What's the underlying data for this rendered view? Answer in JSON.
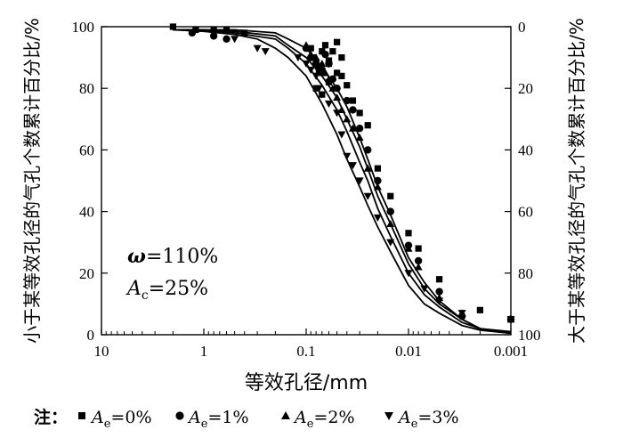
{
  "chart_data": {
    "type": "scatter",
    "xlabel": "等效孔径/mm",
    "ylabel": "小于某等效孔径的气孔个数累计百分比/%",
    "y2label": "大于某等效孔径的气孔个数累计百分比/%",
    "x_scale": "log",
    "x_reversed": true,
    "xlim": [
      10,
      0.001
    ],
    "ylim": [
      0,
      100
    ],
    "y2lim": [
      100,
      0
    ],
    "x_ticks": [
      "10",
      "1",
      "0.1",
      "0.01",
      "0.001"
    ],
    "y_ticks": [
      "0",
      "20",
      "40",
      "60",
      "80",
      "100"
    ],
    "y2_ticks": [
      "100",
      "80",
      "60",
      "40",
      "20",
      "0"
    ],
    "grid": false,
    "annotation": {
      "omega": {
        "symbol": "ω",
        "text": "=110%"
      },
      "Ac": {
        "symbol": "A",
        "sub": "c",
        "text": "=25%"
      }
    },
    "legend": {
      "prefix": "注：",
      "symbol": "A",
      "sub": "e",
      "placement": "bottom"
    },
    "series": [
      {
        "name": "=0%",
        "marker": "square",
        "points": [
          [
            2,
            100
          ],
          [
            1.2,
            99
          ],
          [
            0.8,
            99
          ],
          [
            0.6,
            99
          ],
          [
            0.4,
            98
          ],
          [
            0.09,
            93
          ],
          [
            0.085,
            90
          ],
          [
            0.08,
            88
          ],
          [
            0.075,
            86
          ],
          [
            0.07,
            92
          ],
          [
            0.065,
            94
          ],
          [
            0.06,
            89
          ],
          [
            0.055,
            92
          ],
          [
            0.05,
            95
          ],
          [
            0.045,
            90
          ],
          [
            0.05,
            85
          ],
          [
            0.06,
            82
          ],
          [
            0.07,
            85
          ],
          [
            0.08,
            80
          ],
          [
            0.07,
            78
          ],
          [
            0.06,
            88
          ],
          [
            0.045,
            84
          ],
          [
            0.04,
            81
          ],
          [
            0.035,
            76
          ],
          [
            0.03,
            72
          ],
          [
            0.025,
            68
          ],
          [
            0.02,
            54
          ],
          [
            0.015,
            45
          ],
          [
            0.01,
            33
          ],
          [
            0.008,
            28
          ],
          [
            0.005,
            18
          ],
          [
            0.002,
            8
          ],
          [
            0.001,
            5
          ]
        ],
        "fit": [
          [
            2,
            99
          ],
          [
            1,
            99
          ],
          [
            0.5,
            99
          ],
          [
            0.2,
            98
          ],
          [
            0.15,
            96
          ],
          [
            0.1,
            93
          ],
          [
            0.07,
            87
          ],
          [
            0.05,
            80
          ],
          [
            0.04,
            74
          ],
          [
            0.03,
            64
          ],
          [
            0.025,
            57
          ],
          [
            0.02,
            48
          ],
          [
            0.015,
            39
          ],
          [
            0.01,
            25
          ],
          [
            0.007,
            17
          ],
          [
            0.005,
            11
          ],
          [
            0.003,
            5
          ],
          [
            0.002,
            2
          ],
          [
            0.001,
            1
          ]
        ]
      },
      {
        "name": "=1%",
        "marker": "circle",
        "points": [
          [
            1.3,
            98
          ],
          [
            0.8,
            97
          ],
          [
            0.6,
            96
          ],
          [
            0.1,
            93
          ],
          [
            0.09,
            90
          ],
          [
            0.08,
            88
          ],
          [
            0.07,
            86
          ],
          [
            0.065,
            91
          ],
          [
            0.06,
            88
          ],
          [
            0.055,
            83
          ],
          [
            0.05,
            80
          ],
          [
            0.04,
            76
          ],
          [
            0.035,
            73
          ],
          [
            0.03,
            67
          ],
          [
            0.025,
            60
          ],
          [
            0.02,
            50
          ],
          [
            0.015,
            40
          ],
          [
            0.01,
            29
          ],
          [
            0.008,
            24
          ],
          [
            0.005,
            14
          ],
          [
            0.003,
            6
          ],
          [
            0.001,
            5
          ]
        ],
        "fit": [
          [
            2,
            99
          ],
          [
            1,
            99
          ],
          [
            0.5,
            98.5
          ],
          [
            0.2,
            97
          ],
          [
            0.15,
            94
          ],
          [
            0.1,
            90
          ],
          [
            0.07,
            84
          ],
          [
            0.05,
            77
          ],
          [
            0.04,
            70
          ],
          [
            0.03,
            61
          ],
          [
            0.025,
            54
          ],
          [
            0.02,
            45
          ],
          [
            0.015,
            36
          ],
          [
            0.01,
            23
          ],
          [
            0.007,
            15
          ],
          [
            0.005,
            10
          ],
          [
            0.003,
            5
          ],
          [
            0.002,
            2
          ],
          [
            0.001,
            0.5
          ]
        ]
      },
      {
        "name": "=2%",
        "marker": "triangle-up",
        "points": [
          [
            0.1,
            94
          ],
          [
            0.09,
            91
          ],
          [
            0.08,
            90
          ],
          [
            0.07,
            88
          ],
          [
            0.065,
            85
          ],
          [
            0.06,
            83
          ],
          [
            0.055,
            80
          ],
          [
            0.05,
            77
          ],
          [
            0.045,
            73
          ],
          [
            0.04,
            70
          ],
          [
            0.035,
            67
          ],
          [
            0.03,
            64
          ],
          [
            0.025,
            54
          ],
          [
            0.02,
            48
          ],
          [
            0.015,
            36
          ],
          [
            0.01,
            28
          ],
          [
            0.008,
            22
          ],
          [
            0.005,
            12
          ],
          [
            0.003,
            7
          ],
          [
            0.001,
            5
          ]
        ],
        "fit": [
          [
            2,
            99
          ],
          [
            1,
            99
          ],
          [
            0.5,
            98
          ],
          [
            0.2,
            96
          ],
          [
            0.15,
            93
          ],
          [
            0.1,
            88
          ],
          [
            0.07,
            81
          ],
          [
            0.05,
            73
          ],
          [
            0.04,
            66
          ],
          [
            0.03,
            56
          ],
          [
            0.025,
            50
          ],
          [
            0.02,
            41
          ],
          [
            0.015,
            32
          ],
          [
            0.01,
            20
          ],
          [
            0.007,
            13
          ],
          [
            0.005,
            9
          ],
          [
            0.003,
            4
          ],
          [
            0.002,
            2
          ],
          [
            0.001,
            0.5
          ]
        ]
      },
      {
        "name": "=3%",
        "marker": "triangle-down",
        "points": [
          [
            0.5,
            96
          ],
          [
            0.3,
            93
          ],
          [
            0.25,
            92
          ],
          [
            0.12,
            90
          ],
          [
            0.1,
            88
          ],
          [
            0.09,
            86
          ],
          [
            0.08,
            84
          ],
          [
            0.075,
            80
          ],
          [
            0.07,
            78
          ],
          [
            0.06,
            75
          ],
          [
            0.05,
            72
          ],
          [
            0.045,
            65
          ],
          [
            0.04,
            58
          ],
          [
            0.035,
            55
          ],
          [
            0.03,
            50
          ],
          [
            0.025,
            45
          ],
          [
            0.02,
            38
          ],
          [
            0.015,
            30
          ],
          [
            0.01,
            20
          ],
          [
            0.007,
            15
          ],
          [
            0.005,
            11
          ],
          [
            0.003,
            7
          ],
          [
            0.001,
            5
          ]
        ],
        "fit": [
          [
            2,
            99
          ],
          [
            1,
            98.5
          ],
          [
            0.5,
            97.5
          ],
          [
            0.3,
            96
          ],
          [
            0.2,
            93
          ],
          [
            0.15,
            90
          ],
          [
            0.1,
            84
          ],
          [
            0.07,
            75
          ],
          [
            0.05,
            65
          ],
          [
            0.04,
            57
          ],
          [
            0.03,
            48
          ],
          [
            0.025,
            42
          ],
          [
            0.02,
            35
          ],
          [
            0.015,
            27
          ],
          [
            0.01,
            16
          ],
          [
            0.007,
            10
          ],
          [
            0.005,
            7
          ],
          [
            0.003,
            3
          ],
          [
            0.002,
            1.5
          ],
          [
            0.001,
            0.5
          ]
        ]
      }
    ]
  }
}
